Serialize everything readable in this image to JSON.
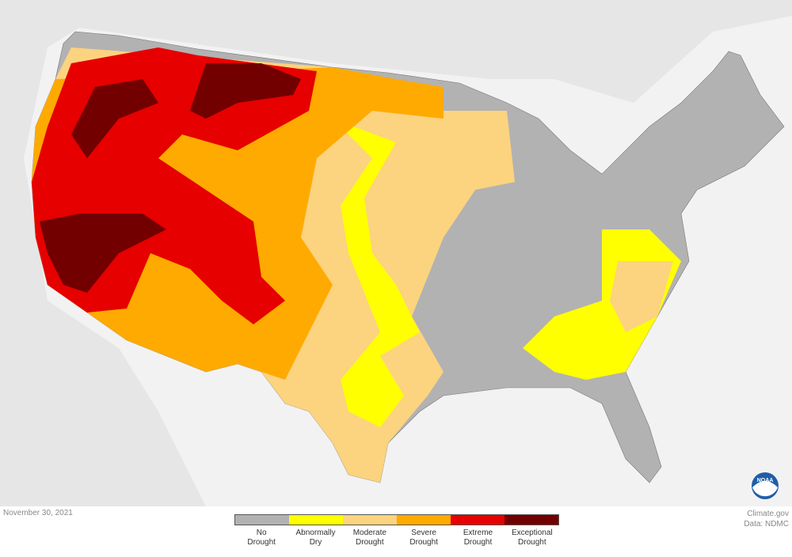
{
  "date": "November 30, 2021",
  "credit": {
    "line1": "Climate.gov",
    "line2": "Data: NDMC"
  },
  "logo": {
    "text": "NOAA",
    "icon": "noaa-logo"
  },
  "legend": [
    {
      "line1": "No",
      "line2": "Drought",
      "color": "#b2b2b2"
    },
    {
      "line1": "Abnormally",
      "line2": "Dry",
      "color": "#ffff00"
    },
    {
      "line1": "Moderate",
      "line2": "Drought",
      "color": "#fcd37f"
    },
    {
      "line1": "Severe",
      "line2": "Drought",
      "color": "#ffaa00"
    },
    {
      "line1": "Extreme",
      "line2": "Drought",
      "color": "#e60000"
    },
    {
      "line1": "Exceptional",
      "line2": "Drought",
      "color": "#730000"
    }
  ]
}
